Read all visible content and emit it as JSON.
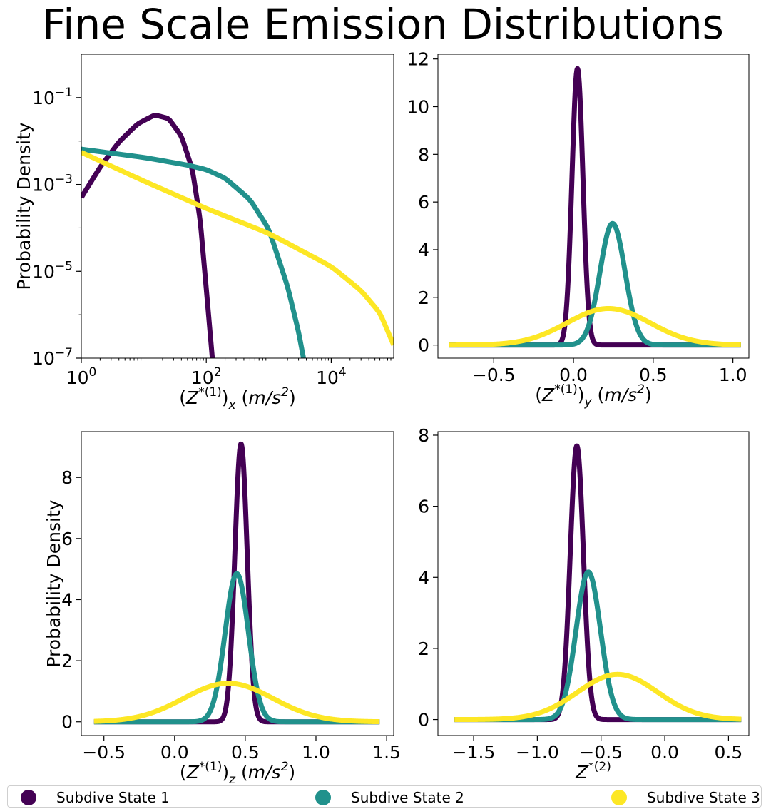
{
  "title": "Fine Scale Emission Distributions",
  "colors": {
    "state1": "#440154",
    "state2": "#21918c",
    "state3": "#fde725"
  },
  "legend": [
    {
      "label": "Subdive State 1",
      "color": "#440154"
    },
    {
      "label": "Subdive State 2",
      "color": "#21918c"
    },
    {
      "label": "Subdive State 3",
      "color": "#fde725"
    }
  ],
  "chart_data": [
    {
      "type": "line",
      "panel": "top-left",
      "xlabel": "(Z*(1))x (m/s2)",
      "ylabel": "Probability Density",
      "xscale": "log",
      "yscale": "log",
      "xlim": [
        1,
        100000
      ],
      "ylim": [
        1e-07,
        1
      ],
      "xticks": [
        {
          "label": "10^0",
          "base": "10",
          "exp": "0",
          "v": 1
        },
        {
          "label": "10^2",
          "base": "10",
          "exp": "2",
          "v": 100
        },
        {
          "label": "10^4",
          "base": "10",
          "exp": "4",
          "v": 10000
        }
      ],
      "yticks": [
        {
          "label": "10^-1",
          "base": "10",
          "exp": "−1",
          "v": 0.1
        },
        {
          "label": "10^-3",
          "base": "10",
          "exp": "−3",
          "v": 0.001
        },
        {
          "label": "10^-5",
          "base": "10",
          "exp": "−5",
          "v": 1e-05
        },
        {
          "label": "10^-7",
          "base": "10",
          "exp": "−7",
          "v": 1e-07
        }
      ],
      "series": [
        {
          "name": "Subdive State 1",
          "x": [
            1,
            2,
            4,
            8,
            15,
            25,
            40,
            60,
            80,
            100,
            125
          ],
          "y": [
            0.0005,
            0.0025,
            0.0095,
            0.025,
            0.04,
            0.033,
            0.013,
            0.0022,
            0.00015,
            4e-06,
            1e-07
          ]
        },
        {
          "name": "Subdive State 2",
          "x": [
            1,
            10,
            50,
            100,
            200,
            500,
            1000,
            2000,
            3000,
            3600
          ],
          "y": [
            0.0065,
            0.0042,
            0.0028,
            0.0022,
            0.0014,
            0.00045,
            9.5e-05,
            4.5e-06,
            4e-07,
            1e-07
          ]
        },
        {
          "name": "Subdive State 3",
          "x": [
            1,
            10,
            100,
            1000,
            10000,
            30000,
            60000,
            100000
          ],
          "y": [
            0.0055,
            0.0012,
            0.00028,
            7.5e-05,
            1.3e-05,
            3.6e-06,
            1.1e-06,
            2e-07
          ]
        }
      ]
    },
    {
      "type": "line",
      "panel": "top-right",
      "xlabel": "(Z*(1))y (m/s2)",
      "ylabel": "",
      "xlim": [
        -0.85,
        1.1
      ],
      "ylim": [
        -0.55,
        12.2
      ],
      "xticks": [
        -0.5,
        0.0,
        0.5,
        1.0
      ],
      "yticks": [
        0,
        2,
        4,
        6,
        8,
        10,
        12
      ],
      "xrange": [
        -0.78,
        1.05
      ],
      "series": [
        {
          "name": "Subdive State 1",
          "dist": "normal",
          "mu": 0.025,
          "peak": 11.6
        },
        {
          "name": "Subdive State 2",
          "dist": "normal",
          "mu": 0.245,
          "peak": 5.1
        },
        {
          "name": "Subdive State 3",
          "dist": "normal",
          "mu": 0.22,
          "peak": 1.53
        }
      ]
    },
    {
      "type": "line",
      "panel": "bottom-left",
      "xlabel": "(Z*(1))z (m/s2)",
      "ylabel": "Probability Density",
      "xlim": [
        -0.66,
        1.55
      ],
      "ylim": [
        -0.45,
        9.5
      ],
      "xticks": [
        -0.5,
        0.0,
        0.5,
        1.0,
        1.5
      ],
      "yticks": [
        0,
        2,
        4,
        6,
        8
      ],
      "xrange": [
        -0.57,
        1.45
      ],
      "series": [
        {
          "name": "Subdive State 1",
          "dist": "normal",
          "mu": 0.47,
          "peak": 9.1
        },
        {
          "name": "Subdive State 2",
          "dist": "normal",
          "mu": 0.44,
          "peak": 4.85
        },
        {
          "name": "Subdive State 3",
          "dist": "normal",
          "mu": 0.38,
          "peak": 1.26
        }
      ]
    },
    {
      "type": "line",
      "panel": "bottom-right",
      "xlabel": "Z*(2)",
      "ylabel": "",
      "xlim": [
        -1.78,
        0.66
      ],
      "ylim": [
        -0.45,
        8.1
      ],
      "xticks": [
        -1.5,
        -1.0,
        -0.5,
        0.0,
        0.5
      ],
      "yticks": [
        0,
        2,
        4,
        6,
        8
      ],
      "xrange": [
        -1.65,
        0.6
      ],
      "series": [
        {
          "name": "Subdive State 1",
          "dist": "normal",
          "mu": -0.69,
          "peak": 7.7
        },
        {
          "name": "Subdive State 2",
          "dist": "normal",
          "mu": -0.6,
          "peak": 4.15
        },
        {
          "name": "Subdive State 3",
          "dist": "normal",
          "mu": -0.37,
          "peak": 1.27
        }
      ]
    }
  ]
}
